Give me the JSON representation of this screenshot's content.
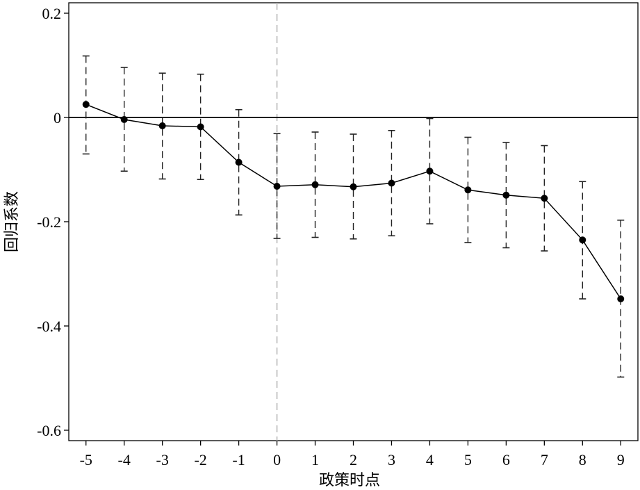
{
  "chart_data": {
    "type": "line",
    "title": "",
    "xlabel": "政策时点",
    "ylabel": "回归系数",
    "x": [
      -5,
      -4,
      -3,
      -2,
      -1,
      0,
      1,
      2,
      3,
      4,
      5,
      6,
      7,
      8,
      9
    ],
    "x_ticks": [
      "-5",
      "-4",
      "-3",
      "-2",
      "-1",
      "0",
      "1",
      "2",
      "3",
      "4",
      "5",
      "6",
      "7",
      "8",
      "9"
    ],
    "y_ticks": [
      0.2,
      0,
      -0.2,
      -0.4,
      -0.6
    ],
    "y_tick_labels": [
      "0.2",
      "0",
      "-0.2",
      "-0.4",
      "-0.6"
    ],
    "xlim": [
      -5.45,
      9.45
    ],
    "ylim": [
      -0.62,
      0.22
    ],
    "series": [
      {
        "values": [
          0.025,
          -0.004,
          -0.016,
          -0.018,
          -0.086,
          -0.132,
          -0.129,
          -0.133,
          -0.126,
          -0.103,
          -0.139,
          -0.149,
          -0.155,
          -0.235,
          -0.348
        ],
        "ci_lower": [
          -0.07,
          -0.103,
          -0.118,
          -0.119,
          -0.187,
          -0.232,
          -0.23,
          -0.233,
          -0.227,
          -0.204,
          -0.24,
          -0.25,
          -0.256,
          -0.348,
          -0.498
        ],
        "ci_upper": [
          0.118,
          0.096,
          0.085,
          0.083,
          0.015,
          -0.031,
          -0.028,
          -0.032,
          -0.025,
          -0.002,
          -0.038,
          -0.048,
          -0.054,
          -0.123,
          -0.197
        ]
      }
    ],
    "reference_lines": {
      "horizontal_y": 0,
      "vertical_x": 0
    },
    "grid": false,
    "legend": "none"
  }
}
